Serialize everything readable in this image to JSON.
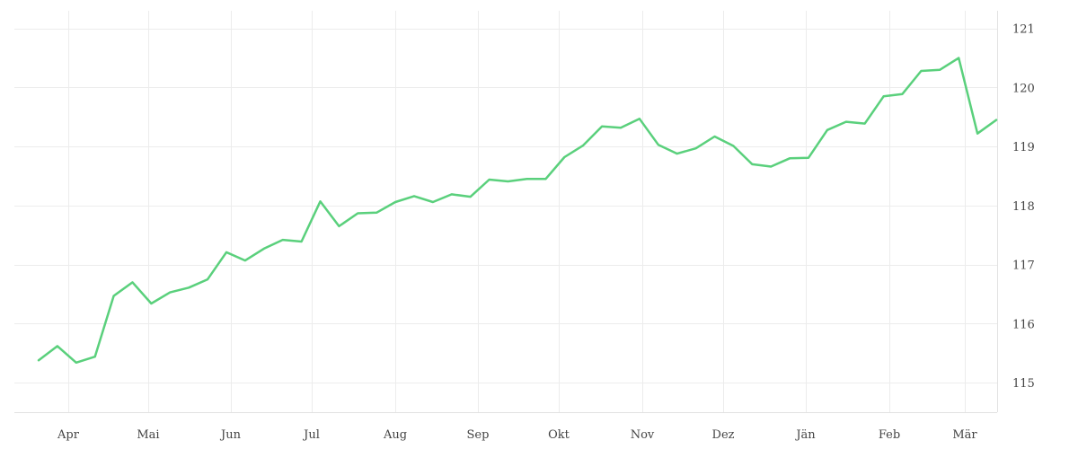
{
  "chart_data": {
    "type": "line",
    "title": "",
    "xlabel": "",
    "ylabel": "",
    "x_tick_labels": [
      "Apr",
      "Mai",
      "Jun",
      "Jul",
      "Aug",
      "Sep",
      "Okt",
      "Nov",
      "Dez",
      "Jän",
      "Feb",
      "Mär"
    ],
    "y_ticks": [
      115,
      116,
      117,
      118,
      119,
      120,
      121
    ],
    "ylim": [
      114.5,
      121.3
    ],
    "grid": true,
    "y_axis_position": "right",
    "line_color": "#5ad07c",
    "series": [
      {
        "values": [
          115.38,
          115.62,
          115.34,
          115.44,
          116.47,
          116.7,
          116.34,
          116.53,
          116.61,
          116.75,
          117.21,
          117.07,
          117.27,
          117.42,
          117.39,
          118.07,
          117.65,
          117.87,
          117.88,
          118.06,
          118.16,
          118.06,
          118.19,
          118.15,
          118.44,
          118.41,
          118.45,
          118.45,
          118.82,
          119.02,
          119.34,
          119.32,
          119.47,
          119.03,
          118.88,
          118.97,
          119.17,
          119.01,
          118.7,
          118.66,
          118.8,
          118.81,
          119.28,
          119.42,
          119.39,
          119.85,
          119.89,
          120.28,
          120.3,
          120.5,
          119.22,
          119.45
        ]
      }
    ]
  }
}
